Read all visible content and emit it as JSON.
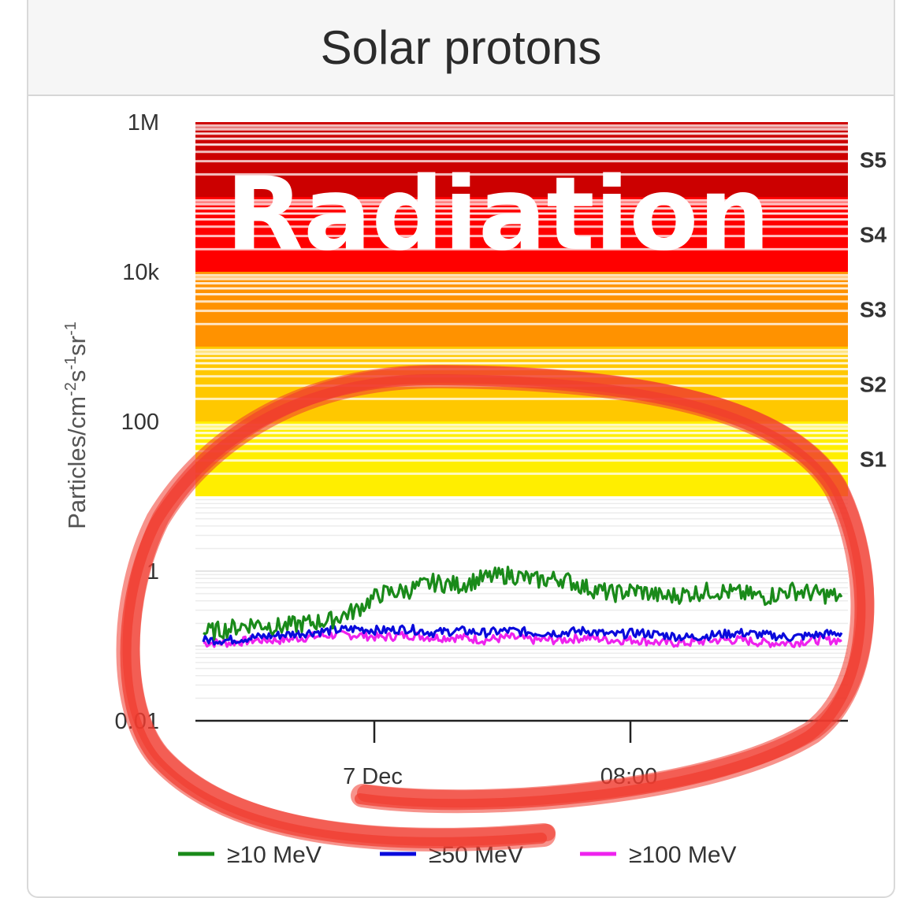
{
  "card": {
    "title": "Solar protons"
  },
  "overlay": {
    "text": "Radiation"
  },
  "colors": {
    "S1": "#ffee00",
    "S2": "#ffc800",
    "S3": "#ff9200",
    "S4": "#ff0000",
    "S5": "#cc0000",
    "annotation": "#f03a2e"
  },
  "chart_data": {
    "type": "line",
    "title": "Solar protons",
    "ylabel": "Particles/cm-2s-1sr-1",
    "yscale": "log",
    "ylim": [
      0.01,
      1000000
    ],
    "y_ticks": [
      "1M",
      "10k",
      "100",
      "1",
      "0.01"
    ],
    "x_ticks": [
      "7 Dec",
      "08:00"
    ],
    "storm_levels": [
      {
        "label": "S1",
        "from": 10,
        "to": 100
      },
      {
        "label": "S2",
        "from": 100,
        "to": 1000
      },
      {
        "label": "S3",
        "from": 1000,
        "to": 10000
      },
      {
        "label": "S4",
        "from": 10000,
        "to": 100000
      },
      {
        "label": "S5",
        "from": 100000,
        "to": 1000000
      }
    ],
    "x_hours": [
      -7,
      -6,
      -5,
      -4,
      -3,
      -2,
      -1,
      0,
      1,
      2,
      3,
      4,
      5,
      6,
      7,
      8,
      9,
      10,
      11,
      12,
      13,
      14,
      15,
      16,
      17,
      18
    ],
    "series": [
      {
        "name": "≥10 MeV",
        "color": "#1a8a1a",
        "values": [
          0.15,
          0.17,
          0.2,
          0.18,
          0.2,
          0.22,
          0.3,
          0.5,
          0.55,
          0.7,
          0.65,
          0.8,
          0.9,
          0.75,
          0.8,
          0.6,
          0.5,
          0.55,
          0.45,
          0.5,
          0.55,
          0.5,
          0.45,
          0.55,
          0.5,
          0.45
        ]
      },
      {
        "name": "≥50 MeV",
        "color": "#0a0adc",
        "values": [
          0.12,
          0.12,
          0.13,
          0.14,
          0.15,
          0.16,
          0.17,
          0.16,
          0.17,
          0.15,
          0.16,
          0.15,
          0.16,
          0.15,
          0.15,
          0.16,
          0.14,
          0.15,
          0.14,
          0.13,
          0.14,
          0.15,
          0.14,
          0.13,
          0.14,
          0.15
        ]
      },
      {
        "name": "≥100 MeV",
        "color": "#ee22ee",
        "values": [
          0.11,
          0.11,
          0.12,
          0.12,
          0.13,
          0.14,
          0.14,
          0.13,
          0.14,
          0.13,
          0.13,
          0.12,
          0.13,
          0.12,
          0.12,
          0.13,
          0.12,
          0.12,
          0.11,
          0.11,
          0.12,
          0.12,
          0.11,
          0.11,
          0.12,
          0.12
        ]
      }
    ],
    "grid": true,
    "legend_position": "bottom"
  }
}
